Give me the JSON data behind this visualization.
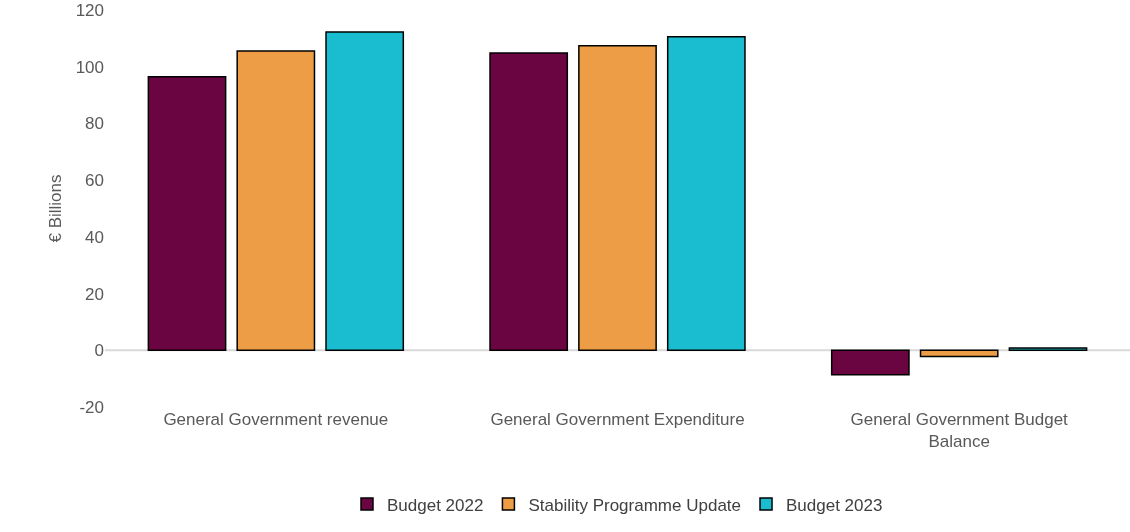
{
  "chart_data": {
    "type": "bar",
    "ylabel": "€ Billions",
    "categories": [
      "General Government revenue",
      "General Government Expenditure",
      "General Government Budget Balance"
    ],
    "series": [
      {
        "name": "Budget 2022",
        "color": "#6b0542",
        "values": [
          96.5,
          104.8,
          -8.6
        ]
      },
      {
        "name": "Stability Programme Update",
        "color": "#ed9d45",
        "values": [
          105.5,
          107.4,
          -2.2
        ]
      },
      {
        "name": "Budget 2023",
        "color": "#19bdcf",
        "values": [
          112.2,
          110.6,
          0.8
        ]
      }
    ],
    "ref_lines": [
      {
        "axis": "y",
        "value": 0,
        "color": "#d9d9d9"
      }
    ],
    "ylim": [
      -20,
      120
    ],
    "yticks": [
      -20,
      0,
      20,
      40,
      60,
      80,
      100,
      120
    ],
    "grid": false,
    "legend": "bottom"
  }
}
